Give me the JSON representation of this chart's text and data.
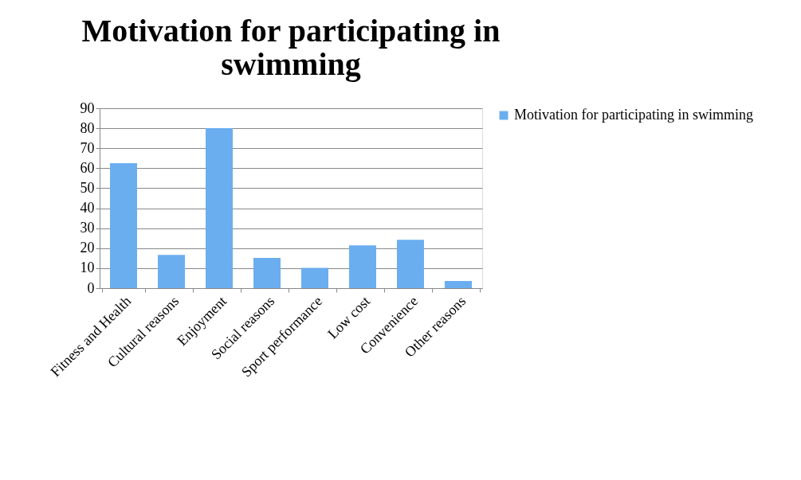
{
  "chart_data": {
    "type": "bar",
    "title": "Motivation for participating in swimming",
    "categories": [
      "Fitness and Health",
      "Cultural reasons",
      "Enjoyment",
      "Social reasons",
      "Sport performance",
      "Low cost",
      "Convenience",
      "Other reasons"
    ],
    "series": [
      {
        "name": "Motivation for participating in swimming",
        "color": "#6aaef0",
        "values": [
          62.5,
          16.6,
          80,
          15.1,
          10.2,
          21.4,
          24.2,
          3.6
        ]
      }
    ],
    "ylim": [
      0,
      90
    ],
    "yticks": [
      0,
      10,
      20,
      30,
      40,
      50,
      60,
      70,
      80,
      90
    ],
    "grid": "y",
    "legend": "right"
  }
}
